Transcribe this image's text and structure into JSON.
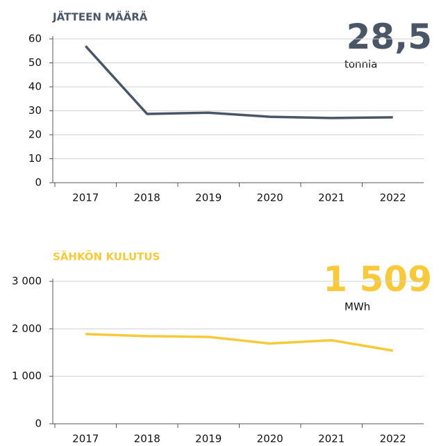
{
  "chart_data": [
    {
      "type": "line",
      "title": "JÄTTEEN MÄÄRÄ",
      "annotation": "28,5",
      "annotation_unit": "tonnia",
      "categories": [
        "2017",
        "2018",
        "2019",
        "2020",
        "2021",
        "2022"
      ],
      "values": [
        57,
        28.7,
        29.2,
        27.5,
        27,
        27.3
      ],
      "color": "#4a5566",
      "ylim": [
        0,
        60
      ],
      "yticks": [
        0,
        10,
        20,
        30,
        40,
        50,
        60
      ],
      "grid": true
    },
    {
      "type": "line",
      "title": "SÄHKÖN KULUTUS",
      "annotation": "1 509",
      "annotation_unit": "MWh",
      "categories": [
        "2017",
        "2018",
        "2019",
        "2020",
        "2021",
        "2022"
      ],
      "values": [
        1890,
        1845,
        1830,
        1690,
        1760,
        1540
      ],
      "color": "#f8c93a",
      "ylim": [
        0,
        3000
      ],
      "yticks": [
        0,
        {
          "value": 1000,
          "label": "1 000"
        },
        {
          "value": 2000,
          "label": "2 000"
        },
        {
          "value": 3000,
          "label": "3 000"
        }
      ],
      "grid": true
    }
  ]
}
